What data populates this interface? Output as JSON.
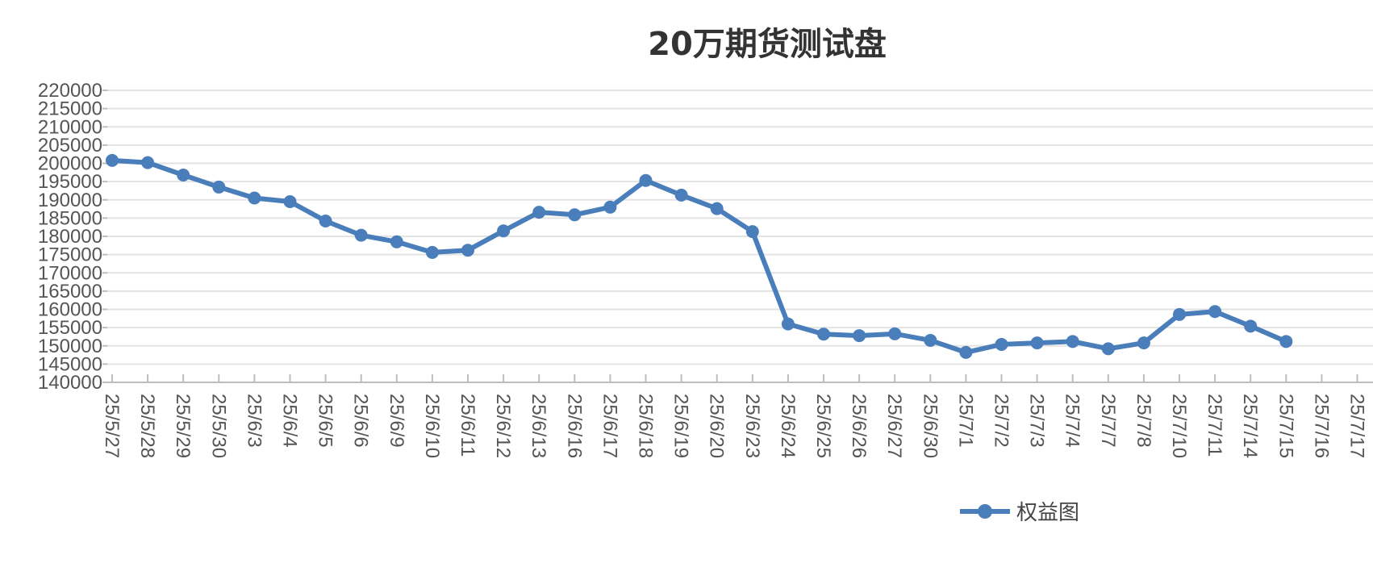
{
  "chart_data": {
    "type": "line",
    "title": "20万期货测试盘",
    "xlabel": "",
    "ylabel": "",
    "ylim": [
      140000,
      220000
    ],
    "yticks": [
      140000,
      145000,
      150000,
      155000,
      160000,
      165000,
      170000,
      175000,
      180000,
      185000,
      190000,
      195000,
      200000,
      205000,
      210000,
      215000,
      220000
    ],
    "categories": [
      "25/5/27",
      "25/5/28",
      "25/5/29",
      "25/5/30",
      "25/6/3",
      "25/6/4",
      "25/6/5",
      "25/6/6",
      "25/6/9",
      "25/6/10",
      "25/6/11",
      "25/6/12",
      "25/6/13",
      "25/6/16",
      "25/6/17",
      "25/6/18",
      "25/6/19",
      "25/6/20",
      "25/6/23",
      "25/6/24",
      "25/6/25",
      "25/6/26",
      "25/6/27",
      "25/6/30",
      "25/7/1",
      "25/7/2",
      "25/7/3",
      "25/7/4",
      "25/7/7",
      "25/7/8",
      "25/7/10",
      "25/7/11",
      "25/7/14",
      "25/7/15",
      "25/7/16",
      "25/7/17"
    ],
    "series": [
      {
        "name": "权益图",
        "color": "#4a7ebb",
        "values": [
          200800,
          200200,
          196800,
          193500,
          190500,
          189500,
          184200,
          180300,
          178500,
          175600,
          176200,
          181500,
          186600,
          185900,
          188000,
          195300,
          191300,
          187600,
          181300,
          156000,
          153200,
          152800,
          153300,
          151500,
          148200,
          150400,
          150800,
          151200,
          149200,
          150800,
          158600,
          159400,
          155400,
          151200,
          null,
          null
        ]
      }
    ],
    "grid": true,
    "legend": "bottom-center"
  }
}
